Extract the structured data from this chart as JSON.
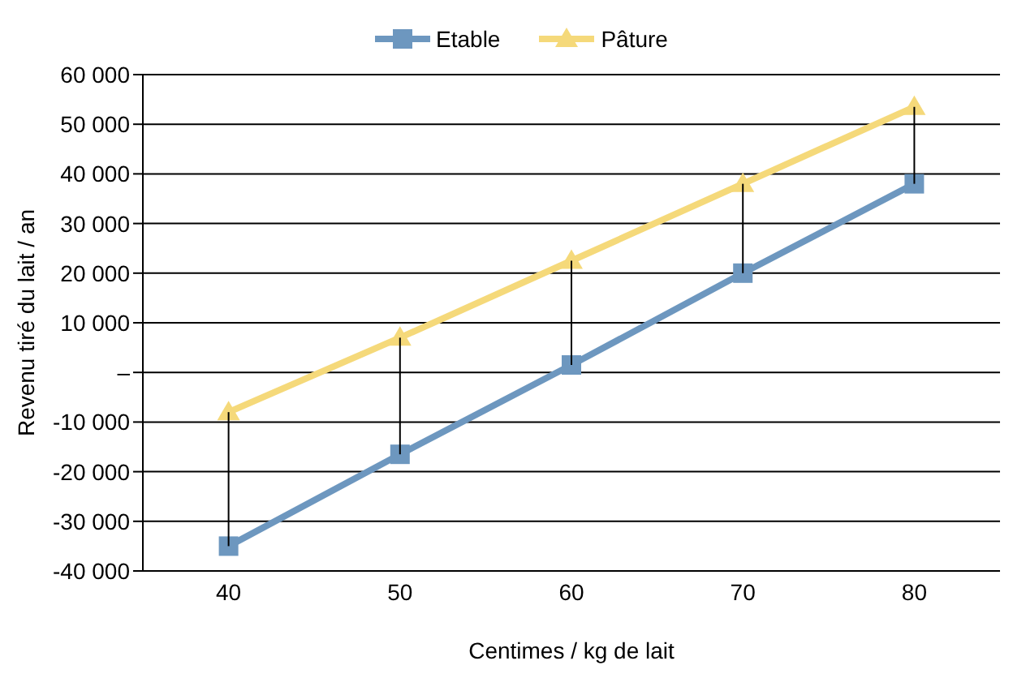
{
  "chart_data": {
    "type": "line",
    "xlabel": "Centimes / kg de lait",
    "ylabel": "Revenu tiré du lait / an",
    "categories": [
      "40",
      "50",
      "60",
      "70",
      "80"
    ],
    "series": [
      {
        "name": "Etable",
        "color": "#6d97bf",
        "marker": "square",
        "values": [
          -35000,
          -16500,
          1500,
          20000,
          38000
        ],
        "errors": [
          [
            -35000,
            -8000
          ],
          [
            -16500,
            7000
          ],
          [
            1500,
            22500
          ],
          [
            20000,
            38000
          ],
          [
            38000,
            53500
          ]
        ]
      },
      {
        "name": "Pâture",
        "color": "#f5d97a",
        "marker": "triangle",
        "values": [
          -8000,
          7000,
          22500,
          38000,
          53500
        ]
      }
    ],
    "ylim": [
      -40000,
      60000
    ],
    "yticks": [
      -40000,
      -30000,
      -20000,
      -10000,
      {
        "value": 0,
        "label": "–"
      },
      10000,
      20000,
      30000,
      40000,
      50000,
      60000
    ],
    "grid": "y",
    "legend": "top"
  }
}
